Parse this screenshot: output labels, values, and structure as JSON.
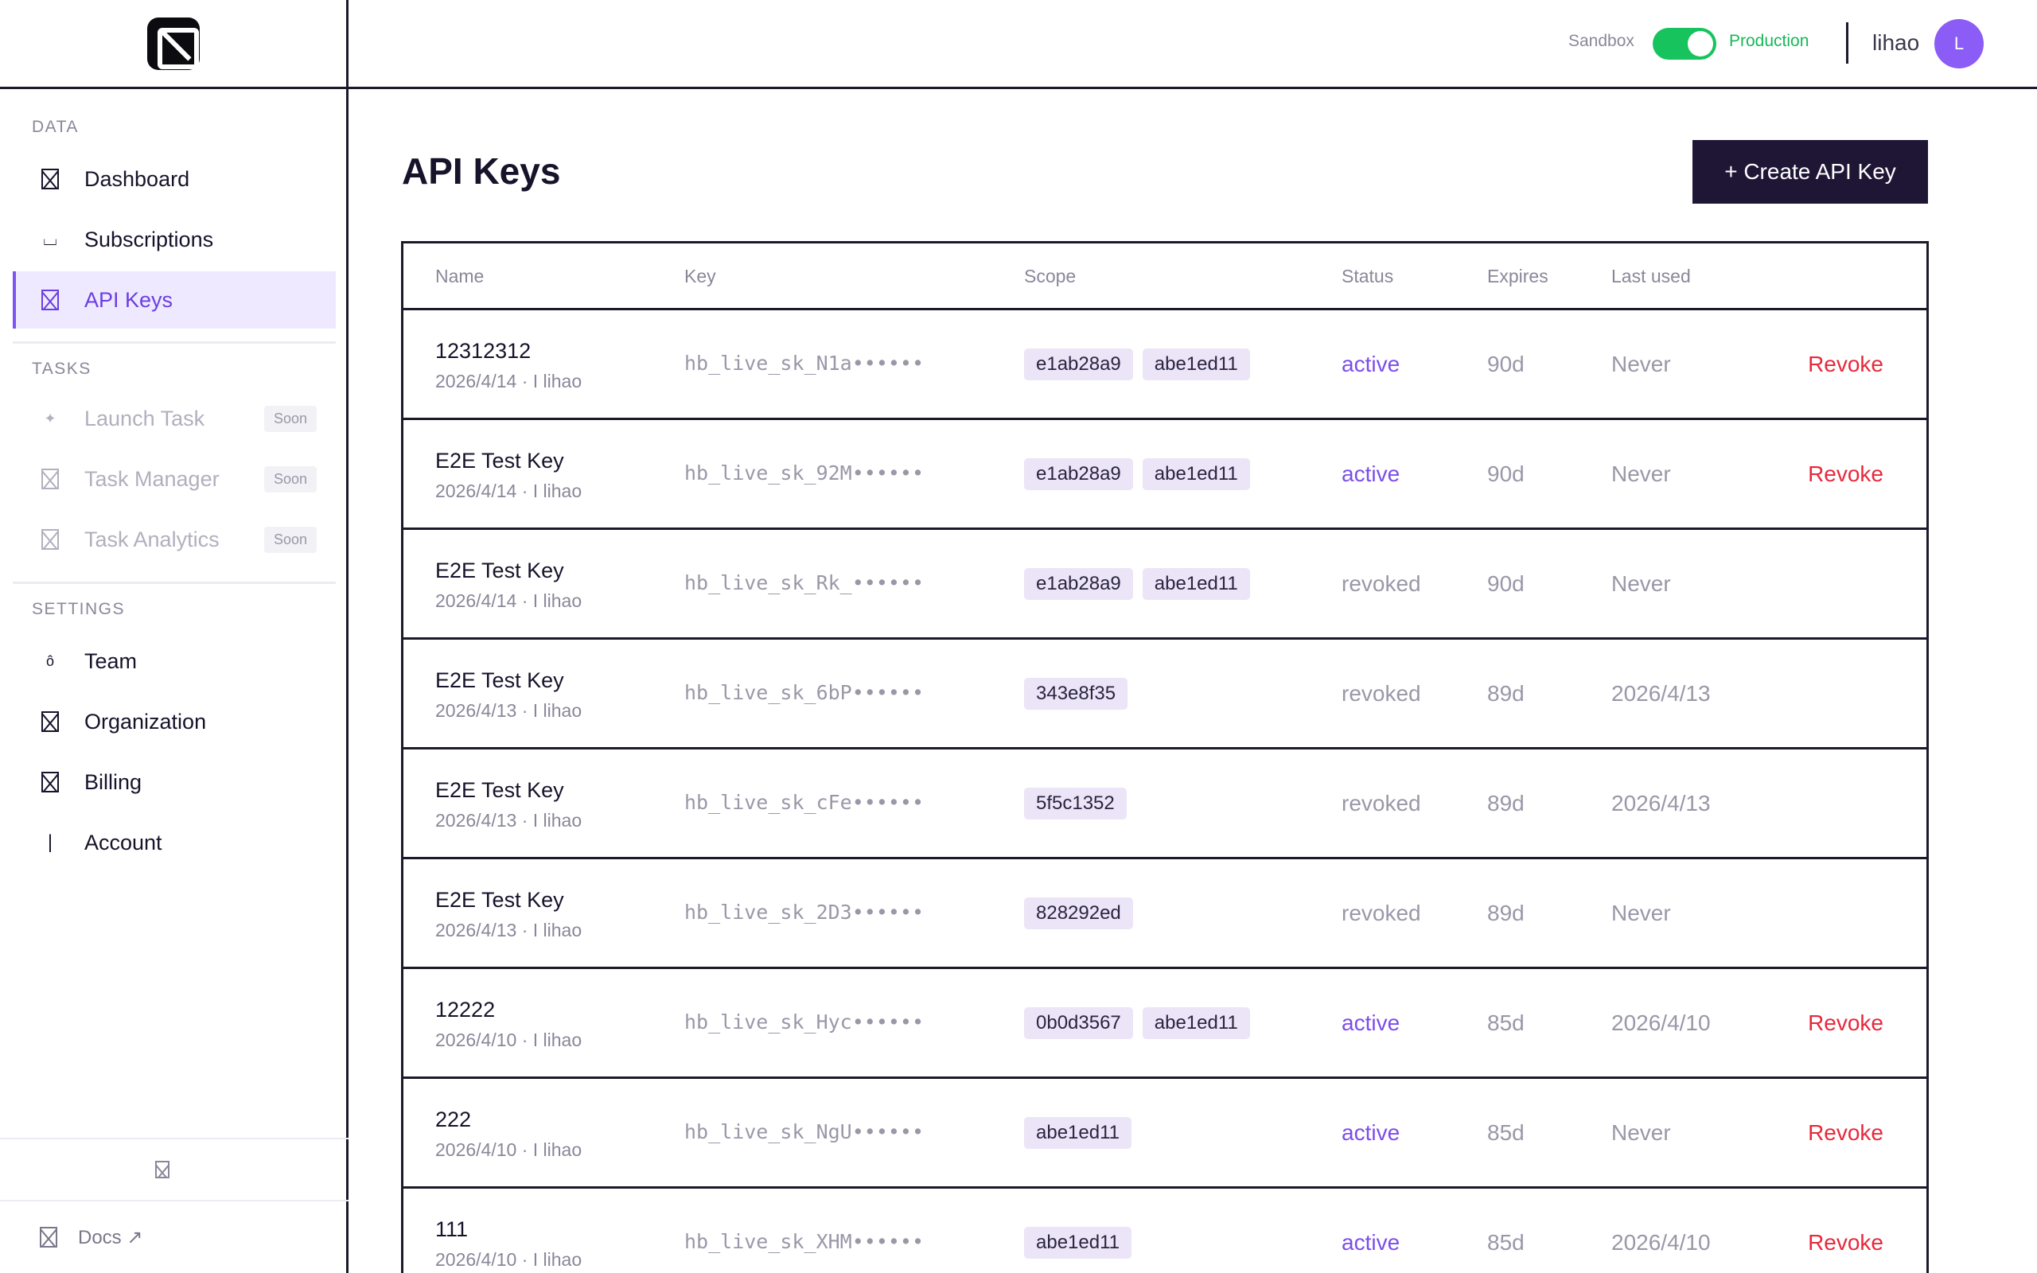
{
  "sidebar": {
    "sections": {
      "data": "DATA",
      "tasks": "TASKS",
      "settings": "SETTINGS"
    },
    "items": {
      "dashboard": "Dashboard",
      "subscriptions": "Subscriptions",
      "api_keys": "API Keys",
      "launch_task": "Launch Task",
      "task_manager": "Task Manager",
      "task_analytics": "Task Analytics",
      "team": "Team",
      "organization": "Organization",
      "billing": "Billing",
      "account": "Account"
    },
    "soon_label": "Soon",
    "docs": "Docs ↗"
  },
  "topbar": {
    "sandbox_label": "Sandbox",
    "production_label": "Production",
    "toggle_on": true,
    "username": "lihao",
    "avatar_initial": "L"
  },
  "main": {
    "title": "API Keys",
    "create_button": "+ Create API Key",
    "columns": [
      "Name",
      "Key",
      "Scope",
      "Status",
      "Expires",
      "Last used"
    ],
    "revoke_label": "Revoke",
    "rows": [
      {
        "name": "12312312",
        "meta": "2026/4/14 · I lihao",
        "key": "hb_live_sk_N1a••••••",
        "scopes": [
          "e1ab28a9",
          "abe1ed11"
        ],
        "status": "active",
        "expires": "90d",
        "last_used": "Never",
        "revocable": true
      },
      {
        "name": "E2E Test Key",
        "meta": "2026/4/14 · I lihao",
        "key": "hb_live_sk_92M••••••",
        "scopes": [
          "e1ab28a9",
          "abe1ed11"
        ],
        "status": "active",
        "expires": "90d",
        "last_used": "Never",
        "revocable": true
      },
      {
        "name": "E2E Test Key",
        "meta": "2026/4/14 · I lihao",
        "key": "hb_live_sk_Rk_••••••",
        "scopes": [
          "e1ab28a9",
          "abe1ed11"
        ],
        "status": "revoked",
        "expires": "90d",
        "last_used": "Never",
        "revocable": false
      },
      {
        "name": "E2E Test Key",
        "meta": "2026/4/13 · I lihao",
        "key": "hb_live_sk_6bP••••••",
        "scopes": [
          "343e8f35"
        ],
        "status": "revoked",
        "expires": "89d",
        "last_used": "2026/4/13",
        "revocable": false
      },
      {
        "name": "E2E Test Key",
        "meta": "2026/4/13 · I lihao",
        "key": "hb_live_sk_cFe••••••",
        "scopes": [
          "5f5c1352"
        ],
        "status": "revoked",
        "expires": "89d",
        "last_used": "2026/4/13",
        "revocable": false
      },
      {
        "name": "E2E Test Key",
        "meta": "2026/4/13 · I lihao",
        "key": "hb_live_sk_2D3••••••",
        "scopes": [
          "828292ed"
        ],
        "status": "revoked",
        "expires": "89d",
        "last_used": "Never",
        "revocable": false
      },
      {
        "name": "12222",
        "meta": "2026/4/10 · I lihao",
        "key": "hb_live_sk_Hyc••••••",
        "scopes": [
          "0b0d3567",
          "abe1ed11"
        ],
        "status": "active",
        "expires": "85d",
        "last_used": "2026/4/10",
        "revocable": true
      },
      {
        "name": "222",
        "meta": "2026/4/10 · I lihao",
        "key": "hb_live_sk_NgU••••••",
        "scopes": [
          "abe1ed11"
        ],
        "status": "active",
        "expires": "85d",
        "last_used": "Never",
        "revocable": true
      },
      {
        "name": "111",
        "meta": "2026/4/10 · I lihao",
        "key": "hb_live_sk_XHM••••••",
        "scopes": [
          "abe1ed11"
        ],
        "status": "active",
        "expires": "85d",
        "last_used": "2026/4/10",
        "revocable": true
      }
    ]
  },
  "colors": {
    "accent": "#7c4dea",
    "active_status": "#7c4dea",
    "revoke": "#e8283c",
    "toggle_on": "#17c35c",
    "primary_button": "#1f1636",
    "avatar": "#8b5cf6"
  },
  "icons": {
    "logo": "app-logo-icon",
    "nav_default": "placeholder-x-icon",
    "subscriptions": "subscriptions-icon",
    "launch_task": "sparkle-icon",
    "team": "team-icon",
    "account": "account-icon",
    "external": "external-link-icon"
  }
}
